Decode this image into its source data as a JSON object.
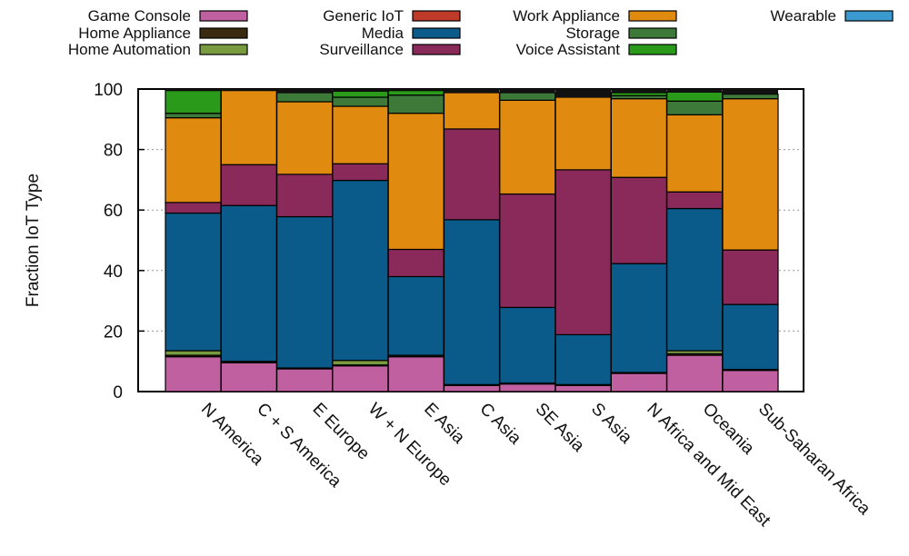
{
  "chart_data": {
    "type": "bar",
    "stacked": true,
    "title": "",
    "xlabel": "",
    "ylabel": "Fraction IoT Type",
    "ylim": [
      0,
      100
    ],
    "yticks": [
      0,
      20,
      40,
      60,
      80,
      100
    ],
    "grid": "horizontal dotted",
    "legend_position": "top",
    "categories": [
      "N America",
      "C + S America",
      "E Europe",
      "W + N Europe",
      "E Asia",
      "C Asia",
      "SE Asia",
      "S Asia",
      "N Africa and Mid East",
      "Oceania",
      "Sub-Saharan Africa"
    ],
    "series": [
      {
        "name": "Game Console",
        "color": "#c060a0",
        "values": [
          11.5,
          9.5,
          7.5,
          8.5,
          11.5,
          2,
          2.5,
          2,
          6,
          12,
          7
        ]
      },
      {
        "name": "Home Appliance",
        "color": "#3a2a10",
        "values": [
          0.5,
          0.5,
          0.3,
          0.3,
          0.5,
          0.3,
          0.3,
          0.3,
          0.3,
          0.5,
          0.3
        ]
      },
      {
        "name": "Home Automation",
        "color": "#7a9a40",
        "values": [
          1.5,
          0,
          0,
          1.5,
          0,
          0,
          0,
          0,
          0,
          1,
          0
        ]
      },
      {
        "name": "Media",
        "color": "#0a5a8a",
        "values": [
          45.5,
          51.5,
          50,
          59.5,
          26,
          54.5,
          25,
          16.5,
          36,
          47,
          21.5
        ]
      },
      {
        "name": "Surveillance",
        "color": "#8a2a5a",
        "values": [
          3.5,
          13.5,
          14,
          5.5,
          9,
          30,
          37.5,
          54.5,
          28.5,
          5.5,
          18
        ]
      },
      {
        "name": "Generic IoT",
        "color": "#c03a2a",
        "values": [
          0,
          0,
          0,
          0,
          0,
          0,
          0,
          0,
          0,
          0,
          0
        ]
      },
      {
        "name": "Work Appliance",
        "color": "#e08a10",
        "values": [
          28,
          24.5,
          24,
          19,
          45,
          12,
          31,
          24,
          26,
          25.5,
          50
        ]
      },
      {
        "name": "Storage",
        "color": "#3d7a3a",
        "values": [
          1.5,
          0,
          3,
          3,
          6,
          0,
          2.5,
          0,
          1,
          4.5,
          1.5
        ]
      },
      {
        "name": "Voice Assistant",
        "color": "#2a9a1a",
        "values": [
          7.5,
          0,
          0,
          2,
          1.5,
          0,
          0,
          0,
          1,
          3,
          0
        ]
      },
      {
        "name": "Wearable",
        "color": "#3a9ad0",
        "values": [
          0,
          0,
          0,
          0,
          0,
          0,
          0,
          0,
          0,
          0,
          0
        ]
      }
    ]
  }
}
